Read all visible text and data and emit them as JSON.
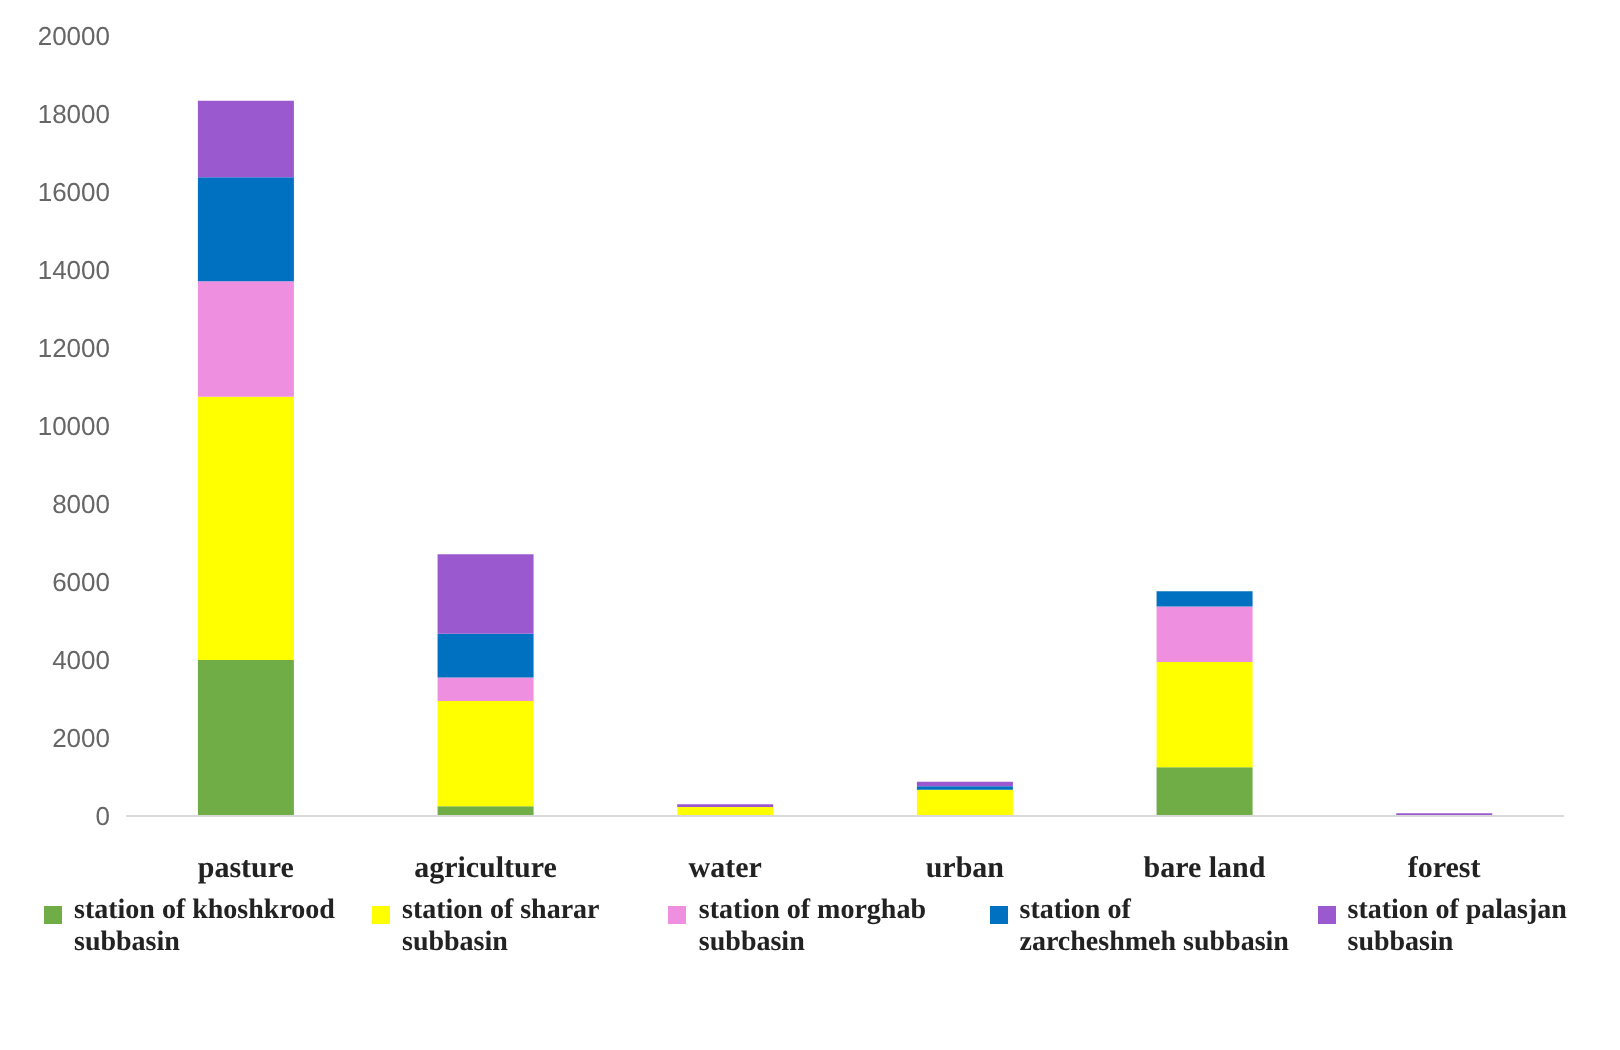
{
  "chart_data": {
    "type": "bar",
    "stacked": true,
    "categories": [
      "pasture",
      "agriculture",
      "water",
      "urban",
      "bare land",
      "forest"
    ],
    "series": [
      {
        "name": "station of khoshkrood subbasin",
        "color": "#70ad47",
        "values": [
          4000,
          250,
          0,
          0,
          1250,
          0
        ]
      },
      {
        "name": "station of sharar subbasin",
        "color": "#ffff00",
        "values": [
          6750,
          2700,
          230,
          670,
          2700,
          0
        ]
      },
      {
        "name": "station of morghab subbasin",
        "color": "#ef8fe0",
        "values": [
          2960,
          600,
          0,
          0,
          1420,
          0
        ]
      },
      {
        "name": "station of zarcheshmeh subbasin",
        "color": "#0070c0",
        "values": [
          2670,
          1120,
          0,
          90,
          390,
          0
        ]
      },
      {
        "name": "station of palasjan subbasin",
        "color": "#9b59d0",
        "values": [
          1960,
          2040,
          70,
          120,
          0,
          70
        ]
      }
    ],
    "ylim": [
      0,
      20000
    ],
    "yticks": [
      0,
      2000,
      4000,
      6000,
      8000,
      10000,
      12000,
      14000,
      16000,
      18000,
      20000
    ],
    "grid": false,
    "legend": "bottom"
  }
}
